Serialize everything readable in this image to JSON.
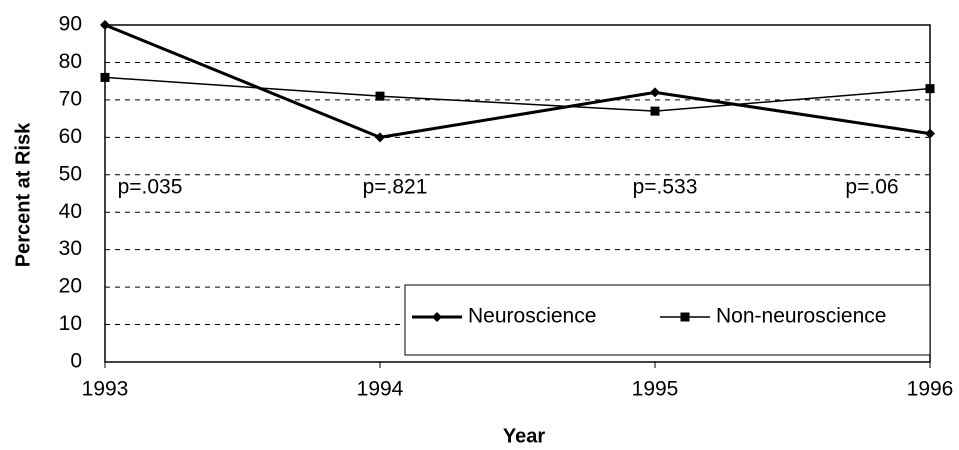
{
  "chart_data": {
    "type": "line",
    "x": [
      1993,
      1994,
      1995,
      1996
    ],
    "xlim": [
      1993,
      1996
    ],
    "xticks": [
      1993,
      1994,
      1995,
      1996
    ],
    "ylim": [
      0,
      90
    ],
    "yticks": [
      0,
      10,
      20,
      30,
      40,
      50,
      60,
      70,
      80,
      90
    ],
    "xlabel": "Year",
    "ylabel": "Percent at Risk",
    "grid": true,
    "legend": "lower right",
    "annotations": [
      "p=.035",
      "p=.821",
      "p=.533",
      "p=.06"
    ],
    "series": [
      {
        "name": "Neuroscience",
        "color": "#000000",
        "marker": "diamond",
        "values": [
          90,
          60,
          72,
          61
        ]
      },
      {
        "name": "Non-neuroscience",
        "color": "#000000",
        "marker": "square",
        "values": [
          76,
          71,
          67,
          73
        ]
      }
    ]
  }
}
